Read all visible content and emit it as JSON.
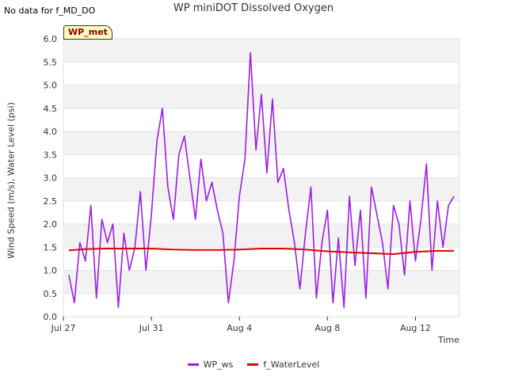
{
  "header": {
    "nodata_text": "No data for f_MD_DO",
    "badge": "WP_met"
  },
  "chart_data": {
    "type": "line",
    "title": "WP miniDOT Dissolved Oxygen",
    "xlabel": "Time",
    "ylabel": "Wind Speed (m/s), Water Level (psi)",
    "ylim": [
      0,
      6.0
    ],
    "yticks": [
      0.0,
      0.5,
      1.0,
      1.5,
      2.0,
      2.5,
      3.0,
      3.5,
      4.0,
      4.5,
      5.0,
      5.5,
      6.0
    ],
    "xlim": [
      "2023-07-27",
      "2023-08-14"
    ],
    "xticks": [
      {
        "label": "Jul 27",
        "date": "2023-07-27"
      },
      {
        "label": "Jul 31",
        "date": "2023-07-31"
      },
      {
        "label": "Aug 4",
        "date": "2023-08-04"
      },
      {
        "label": "Aug 8",
        "date": "2023-08-08"
      },
      {
        "label": "Aug 12",
        "date": "2023-08-12"
      }
    ],
    "grid": true,
    "legend_position": "bottom",
    "series": [
      {
        "name": "WP_ws",
        "color": "#9b1ee6",
        "x": [
          "2023-07-27 06:00",
          "2023-07-27 12:00",
          "2023-07-27 18:00",
          "2023-07-28 00:00",
          "2023-07-28 06:00",
          "2023-07-28 12:00",
          "2023-07-28 18:00",
          "2023-07-29 00:00",
          "2023-07-29 06:00",
          "2023-07-29 12:00",
          "2023-07-29 18:00",
          "2023-07-30 00:00",
          "2023-07-30 06:00",
          "2023-07-30 12:00",
          "2023-07-30 18:00",
          "2023-07-31 00:00",
          "2023-07-31 06:00",
          "2023-07-31 12:00",
          "2023-07-31 18:00",
          "2023-08-01 00:00",
          "2023-08-01 06:00",
          "2023-08-01 12:00",
          "2023-08-01 18:00",
          "2023-08-02 00:00",
          "2023-08-02 06:00",
          "2023-08-02 12:00",
          "2023-08-02 18:00",
          "2023-08-03 00:00",
          "2023-08-03 06:00",
          "2023-08-03 12:00",
          "2023-08-03 18:00",
          "2023-08-04 00:00",
          "2023-08-04 06:00",
          "2023-08-04 12:00",
          "2023-08-04 18:00",
          "2023-08-05 00:00",
          "2023-08-05 06:00",
          "2023-08-05 12:00",
          "2023-08-05 18:00",
          "2023-08-06 00:00",
          "2023-08-06 06:00",
          "2023-08-06 12:00",
          "2023-08-06 18:00",
          "2023-08-07 00:00",
          "2023-08-07 06:00",
          "2023-08-07 12:00",
          "2023-08-07 18:00",
          "2023-08-08 00:00",
          "2023-08-08 06:00",
          "2023-08-08 12:00",
          "2023-08-08 18:00",
          "2023-08-09 00:00",
          "2023-08-09 06:00",
          "2023-08-09 12:00",
          "2023-08-09 18:00",
          "2023-08-10 00:00",
          "2023-08-10 06:00",
          "2023-08-10 12:00",
          "2023-08-10 18:00",
          "2023-08-11 00:00",
          "2023-08-11 06:00",
          "2023-08-11 12:00",
          "2023-08-11 18:00",
          "2023-08-12 00:00",
          "2023-08-12 06:00",
          "2023-08-12 12:00",
          "2023-08-12 18:00",
          "2023-08-13 00:00",
          "2023-08-13 06:00",
          "2023-08-13 12:00",
          "2023-08-13 18:00"
        ],
        "values": [
          0.9,
          0.3,
          1.6,
          1.2,
          2.4,
          0.4,
          2.1,
          1.6,
          2.0,
          0.2,
          1.8,
          1.0,
          1.5,
          2.7,
          1.0,
          2.2,
          3.8,
          4.5,
          2.8,
          2.1,
          3.5,
          3.9,
          3.0,
          2.1,
          3.4,
          2.5,
          2.9,
          2.3,
          1.8,
          0.3,
          1.2,
          2.6,
          3.4,
          5.7,
          3.6,
          4.8,
          3.1,
          4.7,
          2.9,
          3.2,
          2.3,
          1.6,
          0.6,
          1.8,
          2.8,
          0.4,
          1.6,
          2.3,
          0.3,
          1.7,
          0.2,
          2.6,
          1.1,
          2.3,
          0.4,
          2.8,
          2.2,
          1.6,
          0.6,
          2.4,
          2.0,
          0.9,
          2.5,
          1.2,
          2.1,
          3.3,
          1.0,
          2.5,
          1.5,
          2.4,
          2.6
        ]
      },
      {
        "name": "f_WaterLevel",
        "color": "#dd0000",
        "x": [
          "2023-07-27 06:00",
          "2023-07-28 00:00",
          "2023-07-29 00:00",
          "2023-07-30 00:00",
          "2023-07-31 00:00",
          "2023-08-01 00:00",
          "2023-08-02 00:00",
          "2023-08-03 00:00",
          "2023-08-04 00:00",
          "2023-08-05 00:00",
          "2023-08-06 00:00",
          "2023-08-07 00:00",
          "2023-08-08 00:00",
          "2023-08-09 00:00",
          "2023-08-10 00:00",
          "2023-08-11 00:00",
          "2023-08-12 00:00",
          "2023-08-13 00:00",
          "2023-08-13 18:00"
        ],
        "values": [
          1.43,
          1.46,
          1.47,
          1.47,
          1.47,
          1.45,
          1.44,
          1.44,
          1.45,
          1.47,
          1.47,
          1.45,
          1.41,
          1.39,
          1.37,
          1.35,
          1.4,
          1.42,
          1.42
        ]
      }
    ]
  }
}
